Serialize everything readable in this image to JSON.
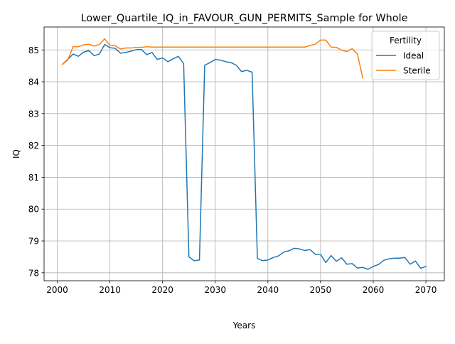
{
  "chart_data": {
    "type": "line",
    "title": "Lower_Quartile_IQ_in_FAVOUR_GUN_PERMITS_Sample for Whole",
    "xlabel": "Years",
    "ylabel": "IQ",
    "xlim": [
      1997.5,
      2073.5
    ],
    "ylim": [
      77.75,
      85.72
    ],
    "xticks": [
      2000,
      2010,
      2020,
      2030,
      2040,
      2050,
      2060,
      2070
    ],
    "yticks": [
      78,
      79,
      80,
      81,
      82,
      83,
      84,
      85
    ],
    "grid": true,
    "legend": {
      "title": "Fertility",
      "position": "top-right"
    },
    "series": [
      {
        "name": "Ideal",
        "color": "#1f77b4",
        "x": [
          2001,
          2002,
          2003,
          2004,
          2005,
          2006,
          2007,
          2008,
          2009,
          2010,
          2011,
          2012,
          2013,
          2014,
          2015,
          2016,
          2017,
          2018,
          2019,
          2020,
          2021,
          2022,
          2023,
          2024,
          2025,
          2026,
          2027,
          2028,
          2029,
          2030,
          2031,
          2032,
          2033,
          2034,
          2035,
          2036,
          2037,
          2038,
          2039,
          2040,
          2041,
          2042,
          2043,
          2044,
          2045,
          2046,
          2047,
          2048,
          2049,
          2050,
          2051,
          2052,
          2053,
          2054,
          2055,
          2056,
          2057,
          2058,
          2059,
          2060,
          2061,
          2062,
          2063,
          2064,
          2065,
          2066,
          2067,
          2068,
          2069,
          2070
        ],
        "y": [
          84.55,
          84.7,
          84.87,
          84.8,
          84.93,
          84.98,
          84.82,
          84.87,
          85.17,
          85.07,
          85.05,
          84.9,
          84.92,
          84.96,
          85.01,
          85.01,
          84.85,
          84.92,
          84.7,
          84.75,
          84.63,
          84.72,
          84.8,
          84.57,
          78.5,
          78.38,
          78.4,
          84.52,
          84.6,
          84.7,
          84.68,
          84.63,
          84.6,
          84.52,
          84.32,
          84.36,
          84.3,
          78.45,
          78.38,
          78.4,
          78.48,
          78.53,
          78.65,
          78.69,
          78.77,
          78.75,
          78.7,
          78.73,
          78.58,
          78.58,
          78.32,
          78.54,
          78.36,
          78.47,
          78.27,
          78.29,
          78.15,
          78.17,
          78.11,
          78.2,
          78.26,
          78.39,
          78.44,
          78.46,
          78.46,
          78.48,
          78.27,
          78.37,
          78.14,
          78.2
        ]
      },
      {
        "name": "Sterile",
        "color": "#ff7f0e",
        "x": [
          2001,
          2002,
          2003,
          2004,
          2005,
          2006,
          2007,
          2008,
          2009,
          2010,
          2011,
          2012,
          2013,
          2014,
          2015,
          2016,
          2017,
          2018,
          2019,
          2020,
          2021,
          2022,
          2023,
          2024,
          2025,
          2026,
          2027,
          2028,
          2029,
          2030,
          2031,
          2032,
          2033,
          2034,
          2035,
          2036,
          2037,
          2038,
          2039,
          2040,
          2041,
          2042,
          2043,
          2044,
          2045,
          2046,
          2047,
          2048,
          2049,
          2050,
          2051,
          2052,
          2053,
          2054,
          2055,
          2056,
          2057,
          2058
        ],
        "y": [
          84.55,
          84.68,
          85.1,
          85.1,
          85.16,
          85.18,
          85.12,
          85.17,
          85.35,
          85.14,
          85.13,
          85.03,
          85.06,
          85.06,
          85.08,
          85.08,
          85.1,
          85.09,
          85.09,
          85.09,
          85.09,
          85.09,
          85.09,
          85.09,
          85.09,
          85.09,
          85.09,
          85.09,
          85.09,
          85.09,
          85.09,
          85.09,
          85.09,
          85.09,
          85.09,
          85.09,
          85.09,
          85.09,
          85.09,
          85.09,
          85.09,
          85.09,
          85.09,
          85.09,
          85.09,
          85.09,
          85.09,
          85.14,
          85.18,
          85.31,
          85.31,
          85.09,
          85.08,
          84.99,
          84.95,
          85.04,
          84.87,
          84.12
        ]
      }
    ]
  }
}
